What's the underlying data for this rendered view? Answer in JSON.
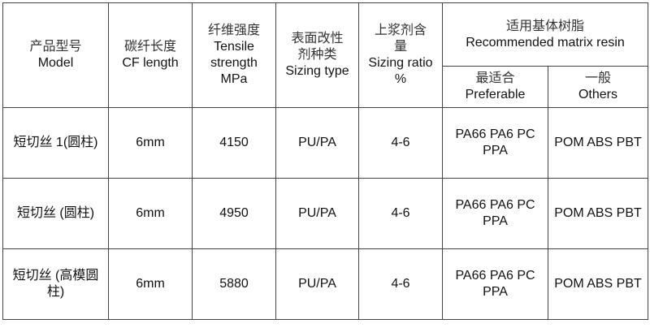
{
  "header": {
    "model": {
      "cn": "产品型号",
      "en": "Model"
    },
    "cf_length": {
      "cn": "碳纤长度",
      "en": "CF length"
    },
    "tensile": {
      "cn": "纤维强度",
      "en1": "Tensile",
      "en2": "strength",
      "en3": "MPa"
    },
    "sizing_type": {
      "cn1": "表面改性",
      "cn2": "剂种类",
      "en": "Sizing type"
    },
    "sizing_ratio": {
      "cn1": "上浆剂含",
      "cn2": "量",
      "en1": "Sizing ratio",
      "en2": "%"
    },
    "matrix": {
      "cn": "适用基体树脂",
      "en": "Recommended matrix resin"
    },
    "preferable": {
      "cn": "最适合",
      "en": "Preferable"
    },
    "others": {
      "cn": "一般",
      "en": "Others"
    }
  },
  "rows": [
    {
      "model": "短切丝 1(圆柱)",
      "length": "6mm",
      "strength": "4150",
      "sizing": "PU/PA",
      "ratio": "4-6",
      "preferable1": "PA66 PA6 PC",
      "preferable2": "PPA",
      "others": "POM ABS PBT"
    },
    {
      "model": "短切丝 (圆柱)",
      "length": "6mm",
      "strength": "4950",
      "sizing": "PU/PA",
      "ratio": "4-6",
      "preferable1": "PA66 PA6 PC",
      "preferable2": "PPA",
      "others": "POM ABS PBT"
    },
    {
      "model": "短切丝 (高模圆柱)",
      "length": "6mm",
      "strength": "5880",
      "sizing": "PU/PA",
      "ratio": "4-6",
      "preferable1": "PA66 PA6 PC",
      "preferable2": "PPA",
      "others": "POM ABS PBT"
    }
  ]
}
